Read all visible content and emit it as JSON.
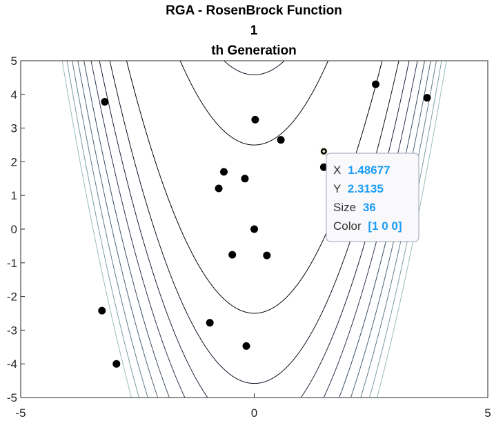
{
  "chart_data": {
    "type": "scatter",
    "title": [
      "RGA - RosenBrock Function",
      "1",
      "th Generation"
    ],
    "xlim": [
      -5,
      5
    ],
    "ylim": [
      -5,
      5
    ],
    "x_ticks": [
      -5,
      0,
      5
    ],
    "y_ticks": [
      5,
      4,
      3,
      2,
      1,
      0,
      -1,
      -2,
      -3,
      -4,
      -5
    ],
    "grid": false,
    "background": "contour plot of the Rosenbrock function",
    "point_color": "#000000",
    "points": [
      {
        "x": -3.2,
        "y": 3.78
      },
      {
        "x": 0.02,
        "y": 3.25
      },
      {
        "x": 0.57,
        "y": 2.65
      },
      {
        "x": 2.6,
        "y": 4.3
      },
      {
        "x": 3.7,
        "y": 3.9
      },
      {
        "x": 1.49,
        "y": 2.31
      },
      {
        "x": 1.49,
        "y": 1.84
      },
      {
        "x": -0.65,
        "y": 1.7
      },
      {
        "x": -0.76,
        "y": 1.21
      },
      {
        "x": -0.2,
        "y": 1.5
      },
      {
        "x": 0.0,
        "y": 0.0
      },
      {
        "x": -0.47,
        "y": -0.76
      },
      {
        "x": 0.27,
        "y": -0.78
      },
      {
        "x": -3.26,
        "y": -2.42
      },
      {
        "x": -0.95,
        "y": -2.78
      },
      {
        "x": -0.17,
        "y": -3.47
      },
      {
        "x": -2.95,
        "y": -4.0
      }
    ],
    "datatip": {
      "x_label": "X",
      "x_value": "1.48677",
      "y_label": "Y",
      "y_value": "2.3135",
      "size_label": "Size",
      "size_value": "36",
      "color_label": "Color",
      "color_value": "[1 0 0]"
    }
  }
}
